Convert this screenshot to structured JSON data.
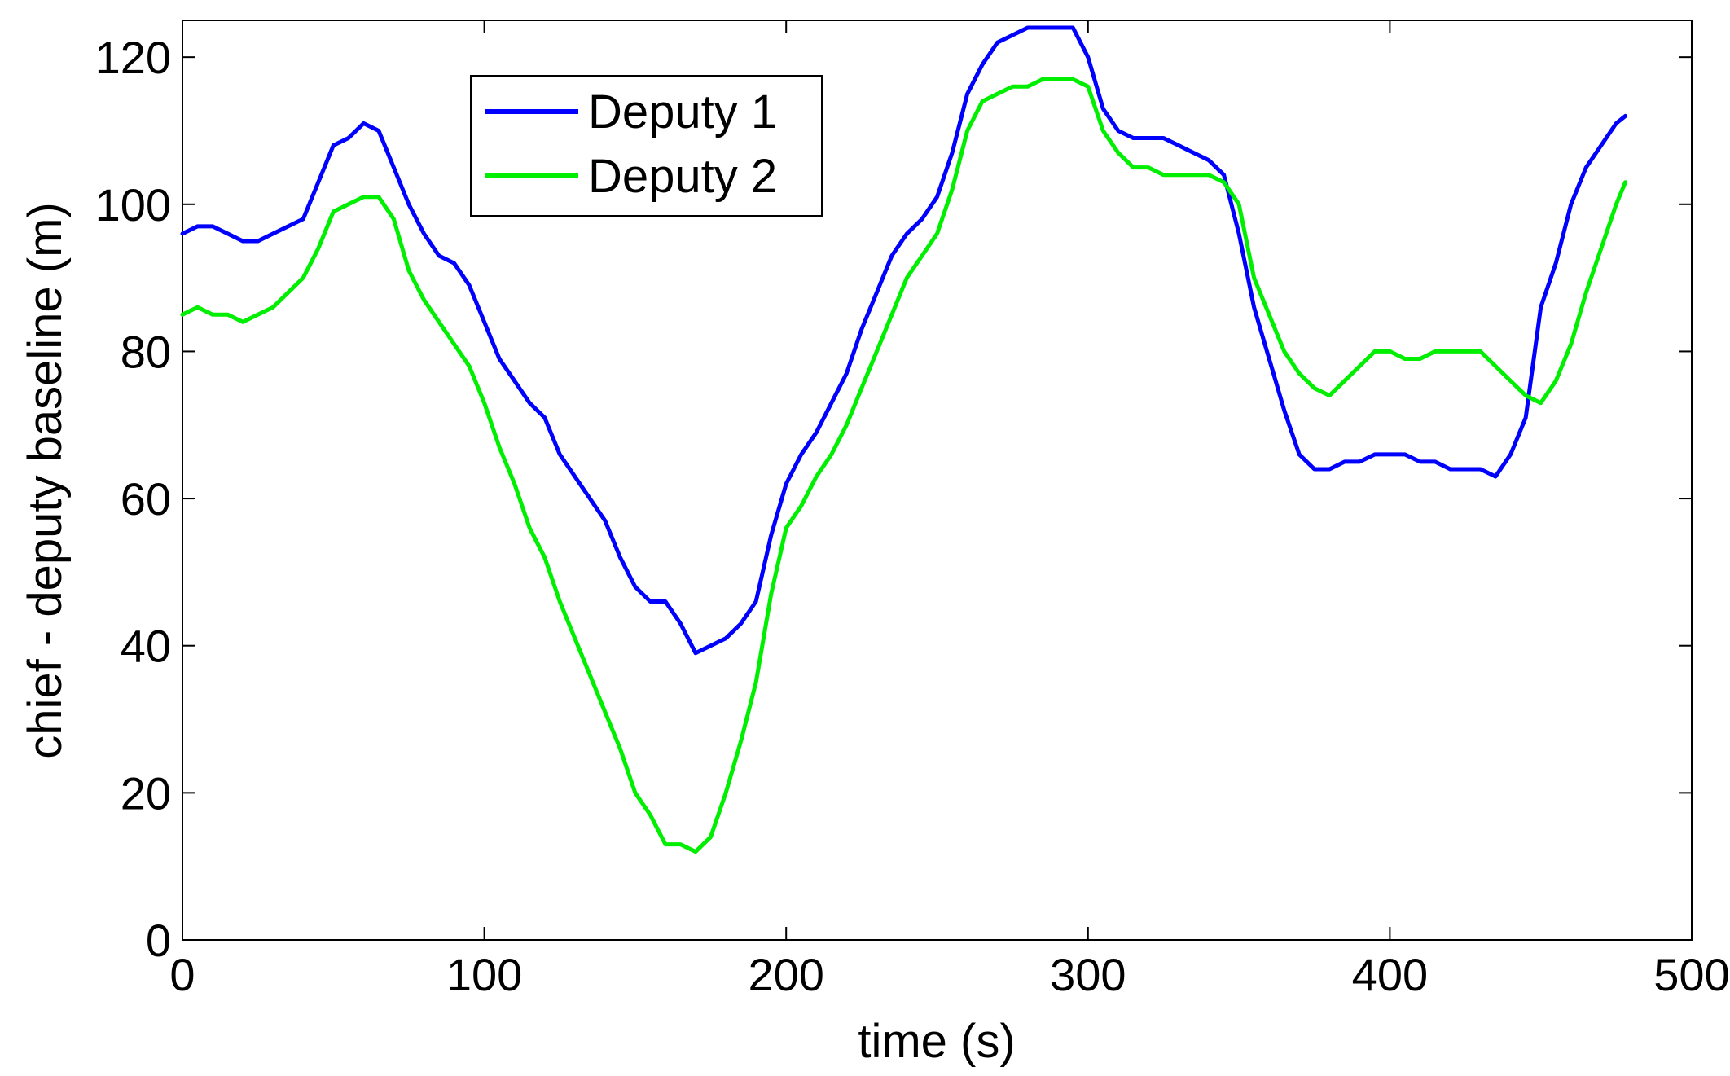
{
  "chart_data": {
    "type": "line",
    "title": "",
    "xlabel": "time (s)",
    "ylabel": "chief - deputy baseline (m)",
    "xlim": [
      0,
      500
    ],
    "ylim": [
      0,
      125
    ],
    "xticks": [
      0,
      100,
      200,
      300,
      400,
      500
    ],
    "yticks": [
      0,
      20,
      40,
      60,
      80,
      100,
      120
    ],
    "grid": false,
    "legend_position": "top-left-center",
    "series": [
      {
        "name": "Deputy 1",
        "color": "#0000FF",
        "x": [
          0,
          5,
          10,
          15,
          20,
          25,
          30,
          35,
          40,
          45,
          50,
          55,
          60,
          65,
          70,
          75,
          80,
          85,
          90,
          95,
          100,
          105,
          110,
          115,
          120,
          125,
          130,
          135,
          140,
          145,
          150,
          155,
          160,
          165,
          170,
          175,
          180,
          185,
          190,
          195,
          200,
          205,
          210,
          215,
          220,
          225,
          230,
          235,
          240,
          245,
          250,
          255,
          260,
          265,
          270,
          275,
          280,
          285,
          290,
          295,
          300,
          305,
          310,
          315,
          320,
          325,
          330,
          335,
          340,
          345,
          350,
          355,
          360,
          365,
          370,
          375,
          380,
          385,
          390,
          395,
          400,
          405,
          410,
          415,
          420,
          425,
          430,
          435,
          440,
          445,
          450,
          455,
          460,
          465,
          470,
          475,
          478
        ],
        "y": [
          96,
          97,
          97,
          96,
          95,
          95,
          96,
          97,
          98,
          103,
          108,
          109,
          111,
          110,
          105,
          100,
          96,
          93,
          92,
          89,
          84,
          79,
          76,
          73,
          71,
          66,
          63,
          60,
          57,
          52,
          48,
          46,
          46,
          43,
          39,
          40,
          41,
          43,
          46,
          55,
          62,
          66,
          69,
          73,
          77,
          83,
          88,
          93,
          96,
          98,
          101,
          107,
          115,
          119,
          122,
          123,
          124,
          124,
          124,
          124,
          120,
          113,
          110,
          109,
          109,
          109,
          108,
          107,
          106,
          104,
          96,
          86,
          79,
          72,
          66,
          64,
          64,
          65,
          65,
          66,
          66,
          66,
          65,
          65,
          64,
          64,
          64,
          63,
          66,
          71,
          86,
          92,
          100,
          105,
          108,
          111,
          112
        ]
      },
      {
        "name": "Deputy 2",
        "color": "#00EE00",
        "x": [
          0,
          5,
          10,
          15,
          20,
          25,
          30,
          35,
          40,
          45,
          50,
          55,
          60,
          65,
          70,
          75,
          80,
          85,
          90,
          95,
          100,
          105,
          110,
          115,
          120,
          125,
          130,
          135,
          140,
          145,
          150,
          155,
          160,
          165,
          170,
          175,
          180,
          185,
          190,
          195,
          200,
          205,
          210,
          215,
          220,
          225,
          230,
          235,
          240,
          245,
          250,
          255,
          260,
          265,
          270,
          275,
          280,
          285,
          290,
          295,
          300,
          305,
          310,
          315,
          320,
          325,
          330,
          335,
          340,
          345,
          350,
          355,
          360,
          365,
          370,
          375,
          380,
          385,
          390,
          395,
          400,
          405,
          410,
          415,
          420,
          425,
          430,
          435,
          440,
          445,
          450,
          455,
          460,
          465,
          470,
          475,
          478
        ],
        "y": [
          85,
          86,
          85,
          85,
          84,
          85,
          86,
          88,
          90,
          94,
          99,
          100,
          101,
          101,
          98,
          91,
          87,
          84,
          81,
          78,
          73,
          67,
          62,
          56,
          52,
          46,
          41,
          36,
          31,
          26,
          20,
          17,
          13,
          13,
          12,
          14,
          20,
          27,
          35,
          47,
          56,
          59,
          63,
          66,
          70,
          75,
          80,
          85,
          90,
          93,
          96,
          102,
          110,
          114,
          115,
          116,
          116,
          117,
          117,
          117,
          116,
          110,
          107,
          105,
          105,
          104,
          104,
          104,
          104,
          103,
          100,
          90,
          85,
          80,
          77,
          75,
          74,
          76,
          78,
          80,
          80,
          79,
          79,
          80,
          80,
          80,
          80,
          78,
          76,
          74,
          73,
          76,
          81,
          88,
          94,
          100,
          103
        ]
      }
    ]
  }
}
